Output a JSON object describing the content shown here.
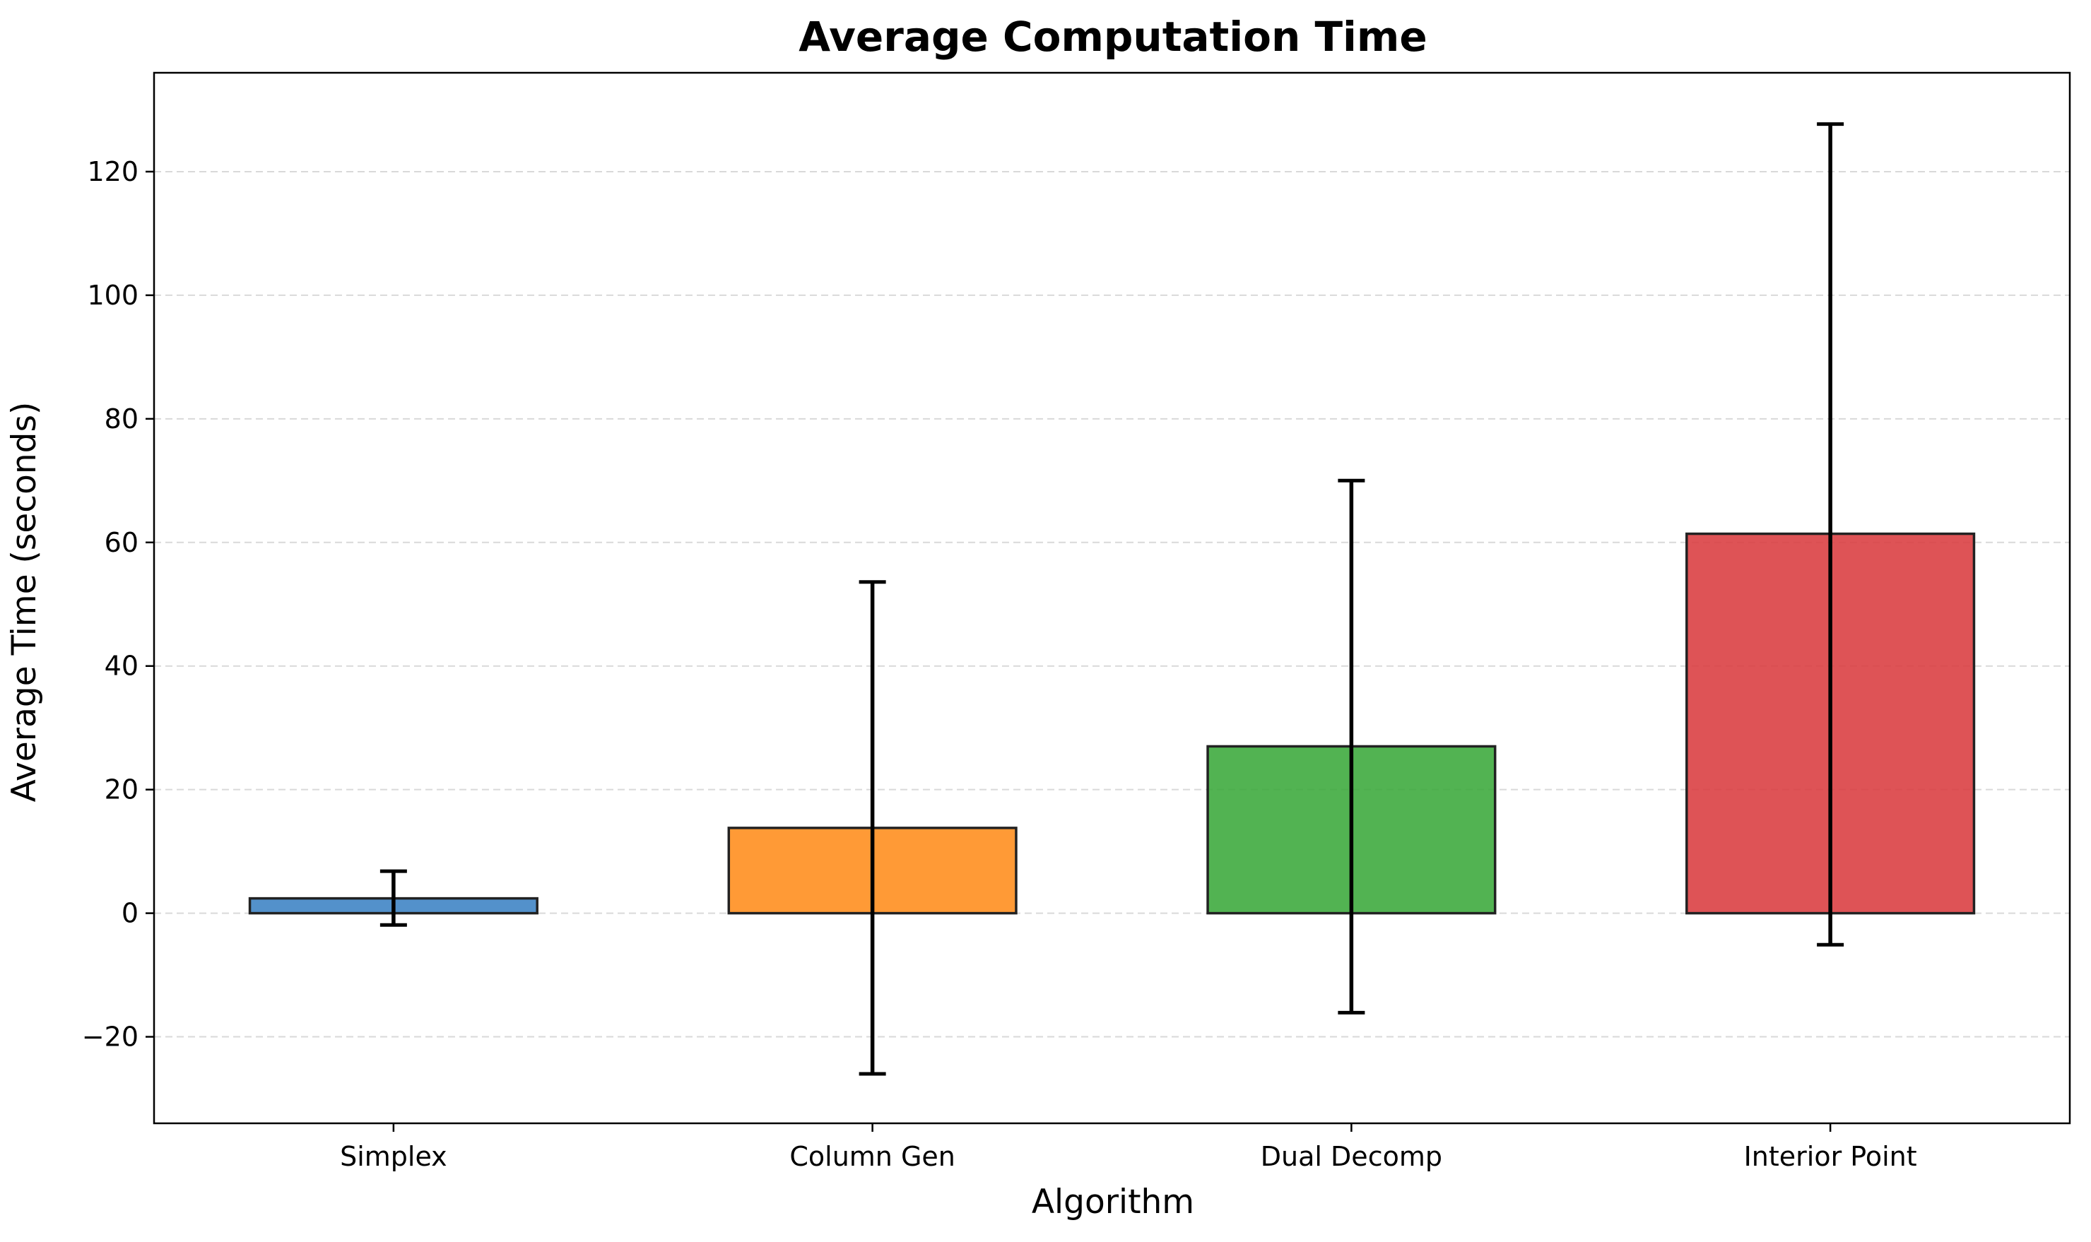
{
  "chart_data": {
    "type": "bar",
    "title": "Average Computation Time",
    "xlabel": "Algorithm",
    "ylabel": "Average Time (seconds)",
    "categories": [
      "Simplex",
      "Column Gen",
      "Dual Decomp",
      "Interior Point"
    ],
    "values": [
      2.4,
      13.8,
      27.0,
      61.4
    ],
    "error_low": [
      -1.9,
      -26.0,
      -16.1,
      -5.1
    ],
    "error_high": [
      6.8,
      53.6,
      70.0,
      127.7
    ],
    "colors": [
      "#3b82c4",
      "#ff8c1a",
      "#3aa83a",
      "#d93b3f"
    ],
    "ylim": [
      -34,
      136
    ],
    "yticks": [
      -20,
      0,
      20,
      40,
      60,
      80,
      100,
      120
    ],
    "ytick_labels": [
      "−20",
      "0",
      "20",
      "40",
      "60",
      "80",
      "100",
      "120"
    ],
    "grid": true
  }
}
